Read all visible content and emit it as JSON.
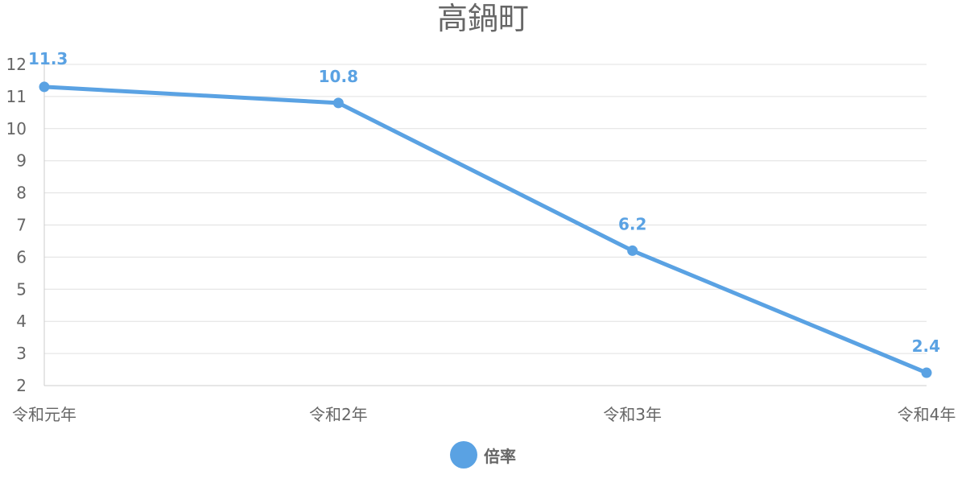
{
  "chart_data": {
    "type": "line",
    "title": "高鍋町",
    "categories": [
      "令和元年",
      "令和2年",
      "令和3年",
      "令和4年"
    ],
    "series": [
      {
        "name": "倍率",
        "values": [
          11.3,
          10.8,
          6.2,
          2.4
        ],
        "color": "#5aa2e3"
      }
    ],
    "data_labels": [
      "11.3",
      "10.8",
      "6.2",
      "2.4"
    ],
    "ylim": [
      2,
      12
    ],
    "yticks": [
      2,
      3,
      4,
      5,
      6,
      7,
      8,
      9,
      10,
      11,
      12
    ],
    "xlabel": "",
    "ylabel": "",
    "grid": true,
    "legend_position": "bottom"
  }
}
